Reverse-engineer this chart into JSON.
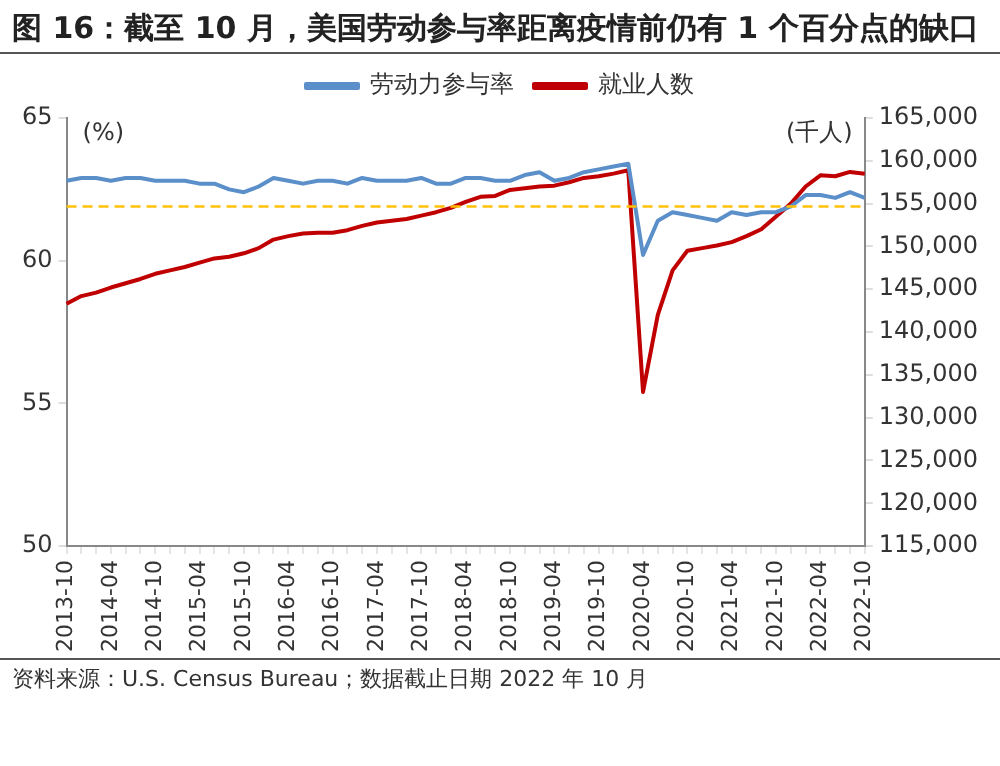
{
  "chart_data": {
    "type": "line",
    "title": "图 16：截至 10 月，美国劳动参与率距离疫情前仍有 1 个百分点的缺口",
    "ylabel": "(%)",
    "y2label": "(千人)",
    "categories": [
      "2013-10",
      null,
      null,
      "2014-04",
      null,
      null,
      "2014-10",
      null,
      null,
      "2015-04",
      null,
      null,
      "2015-10",
      null,
      null,
      "2016-04",
      null,
      null,
      "2016-10",
      null,
      null,
      "2017-04",
      null,
      null,
      "2017-10",
      null,
      null,
      "2018-04",
      null,
      null,
      "2018-10",
      null,
      null,
      "2019-04",
      null,
      null,
      "2019-10",
      null,
      null,
      "2020-04",
      null,
      null,
      "2020-10",
      null,
      null,
      "2021-04",
      null,
      null,
      "2021-10",
      null,
      null,
      "2022-04",
      null,
      null,
      "2022-10"
    ],
    "series": [
      {
        "name": "劳动力参与率",
        "color": "#5b8fc9",
        "values": [
          62.8,
          62.9,
          62.9,
          62.8,
          62.9,
          62.9,
          62.8,
          62.8,
          62.8,
          62.7,
          62.7,
          62.5,
          62.4,
          62.6,
          62.9,
          62.8,
          62.7,
          62.8,
          62.8,
          62.7,
          62.9,
          62.8,
          62.8,
          62.8,
          62.9,
          62.7,
          62.7,
          62.9,
          62.9,
          62.8,
          62.8,
          63.0,
          63.1,
          62.8,
          62.9,
          63.1,
          63.2,
          63.3,
          63.4,
          60.2,
          61.4,
          61.7,
          61.6,
          61.5,
          61.4,
          61.7,
          61.6,
          61.7,
          61.7,
          61.9,
          62.3,
          62.3,
          62.2,
          62.4,
          62.2
        ]
      },
      {
        "name": "就业人数",
        "color": "#c00000",
        "axis": "y2",
        "values": [
          143300,
          144200,
          144600,
          145200,
          145700,
          146200,
          146800,
          147200,
          147600,
          148100,
          148600,
          148800,
          149200,
          149800,
          150800,
          151200,
          151500,
          151600,
          151600,
          151900,
          152400,
          152800,
          153000,
          153200,
          153600,
          154000,
          154500,
          155200,
          155800,
          155900,
          156600,
          156800,
          157000,
          157100,
          157500,
          158000,
          158200,
          158500,
          158900,
          133000,
          142000,
          147200,
          149500,
          149800,
          150100,
          150500,
          151200,
          152000,
          153500,
          155000,
          157000,
          158300,
          158200,
          158700,
          158500
        ]
      }
    ],
    "ylim": [
      50,
      65
    ],
    "yticks": [
      50,
      55,
      60,
      65
    ],
    "y2lim": [
      115000,
      165000
    ],
    "y2ticks": [
      {
        "value": 115000,
        "label": "115,000"
      },
      {
        "value": 120000,
        "label": "120,000"
      },
      {
        "value": 125000,
        "label": "125,000"
      },
      {
        "value": 130000,
        "label": "130,000"
      },
      {
        "value": 135000,
        "label": "135,000"
      },
      {
        "value": 140000,
        "label": "140,000"
      },
      {
        "value": 145000,
        "label": "145,000"
      },
      {
        "value": 150000,
        "label": "150,000"
      },
      {
        "value": 155000,
        "label": "155,000"
      },
      {
        "value": 160000,
        "label": "160,000"
      },
      {
        "value": 165000,
        "label": "165,000"
      }
    ],
    "ref_lines": [
      {
        "axis": "y",
        "value": 61.9,
        "color": "#ffc000",
        "line_style": "dashed"
      }
    ],
    "grid": false,
    "legend": "top",
    "marker": "none",
    "line_style": "solid",
    "annotations": [
      "资料来源：U.S. Census Bureau；数据截止日期 2022 年 10 月"
    ]
  }
}
